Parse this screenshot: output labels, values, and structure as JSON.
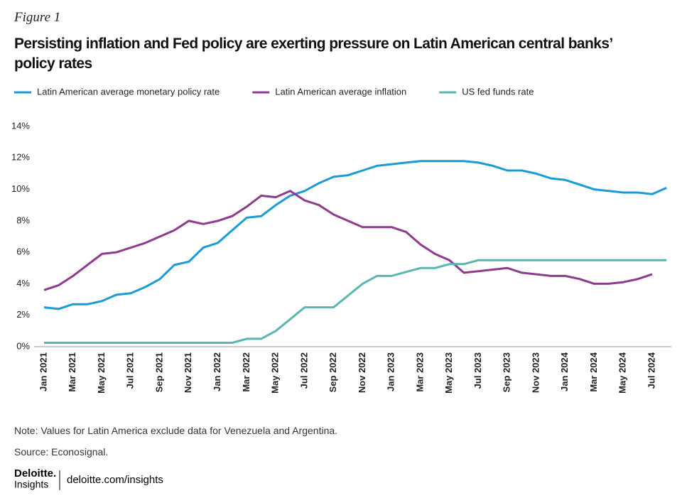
{
  "figure_label": "Figure 1",
  "note": "Note: Values for Latin America exclude data for Venezuela and Argentina.",
  "source": "Source: Econosignal.",
  "footer": {
    "brand": "Deloitte.",
    "sub": "Insights",
    "url": "deloitte.com/insights"
  },
  "chart_data": {
    "type": "line",
    "title": "Persisting inflation and Fed policy are exerting pressure on Latin American central banks’ policy rates",
    "categories": [
      "Jan 2021",
      null,
      "Mar 2021",
      null,
      "May 2021",
      null,
      "Jul 2021",
      null,
      "Sep 2021",
      null,
      "Nov 2021",
      null,
      "Jan 2022",
      null,
      "Mar 2022",
      null,
      "May 2022",
      null,
      "Jul 2022",
      null,
      "Sep 2022",
      null,
      "Nov 2022",
      null,
      "Jan 2023",
      null,
      "Mar 2023",
      null,
      "May 2023",
      null,
      "Jul 2023",
      null,
      "Sep 2023",
      null,
      "Nov 2023",
      null,
      "Jan 2024",
      null,
      "Mar 2024",
      null,
      "May 2024",
      null,
      "Jul 2024",
      null
    ],
    "series": [
      {
        "name": "Latin American average monetary policy rate",
        "color": "#1a9bd7",
        "values": [
          2.5,
          2.4,
          2.7,
          2.7,
          2.9,
          3.3,
          3.4,
          3.8,
          4.3,
          5.2,
          5.4,
          6.3,
          6.6,
          7.4,
          8.2,
          8.3,
          9.0,
          9.6,
          9.9,
          10.4,
          10.8,
          10.9,
          11.2,
          11.5,
          11.6,
          11.7,
          11.8,
          11.8,
          11.8,
          11.8,
          11.7,
          11.5,
          11.2,
          11.2,
          11.0,
          10.7,
          10.6,
          10.3,
          10.0,
          9.9,
          9.8,
          9.8,
          9.7,
          10.1
        ]
      },
      {
        "name": "Latin American average inflation",
        "color": "#8e3b8f",
        "values": [
          3.6,
          3.9,
          4.5,
          5.2,
          5.9,
          6.0,
          6.3,
          6.6,
          7.0,
          7.4,
          8.0,
          7.8,
          8.0,
          8.3,
          8.9,
          9.6,
          9.5,
          9.9,
          9.3,
          9.0,
          8.4,
          8.0,
          7.6,
          7.6,
          7.6,
          7.3,
          6.5,
          5.9,
          5.5,
          4.7,
          4.8,
          4.9,
          5.0,
          4.7,
          4.6,
          4.5,
          4.5,
          4.3,
          4.0,
          4.0,
          4.1,
          4.3,
          4.6,
          null
        ]
      },
      {
        "name": "US fed funds rate",
        "color": "#5bb5b0",
        "values": [
          0.25,
          0.25,
          0.25,
          0.25,
          0.25,
          0.25,
          0.25,
          0.25,
          0.25,
          0.25,
          0.25,
          0.25,
          0.25,
          0.25,
          0.5,
          0.5,
          1.0,
          1.75,
          2.5,
          2.5,
          2.5,
          3.25,
          4.0,
          4.5,
          4.5,
          4.75,
          5.0,
          5.0,
          5.25,
          5.25,
          5.5,
          5.5,
          5.5,
          5.5,
          5.5,
          5.5,
          5.5,
          5.5,
          5.5,
          5.5,
          5.5,
          5.5,
          5.5,
          5.5
        ]
      }
    ],
    "ylim": [
      0,
      14
    ],
    "yticks": [
      {
        "value": 0,
        "label": "0%"
      },
      {
        "value": 2,
        "label": "2%"
      },
      {
        "value": 4,
        "label": "4%"
      },
      {
        "value": 6,
        "label": "6%"
      },
      {
        "value": 8,
        "label": "8%"
      },
      {
        "value": 10,
        "label": "10%"
      },
      {
        "value": 12,
        "label": "12%"
      },
      {
        "value": 14,
        "label": "14%"
      }
    ],
    "grid": false
  }
}
